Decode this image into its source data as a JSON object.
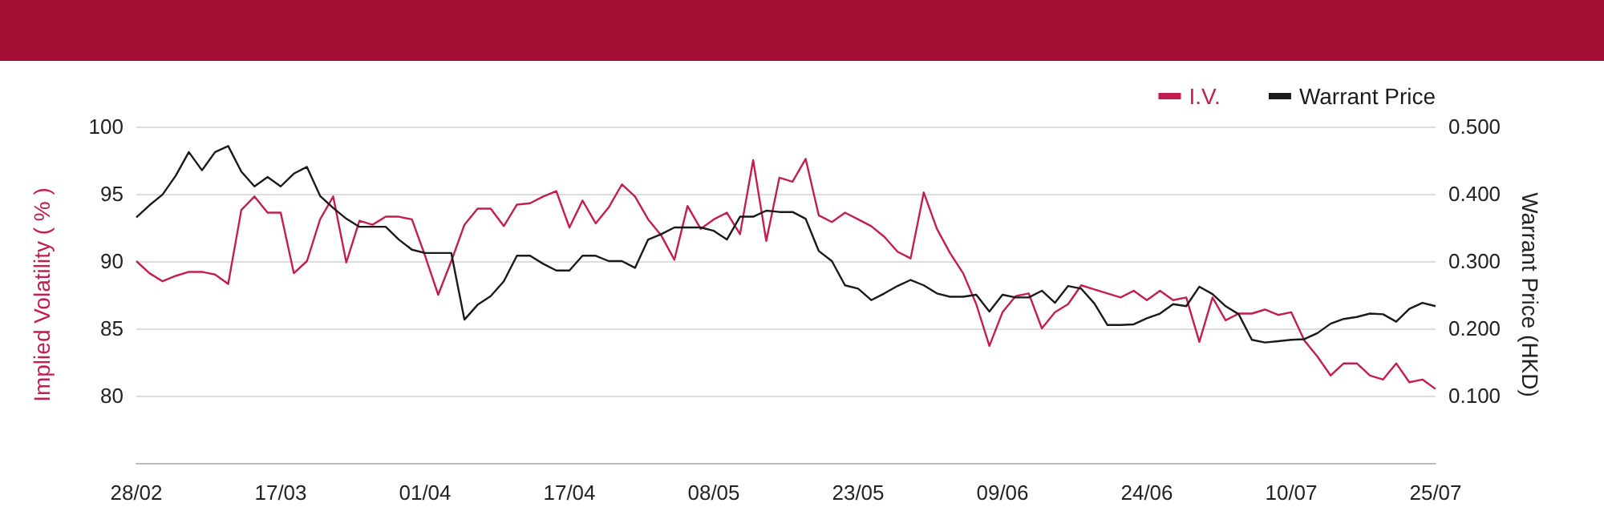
{
  "chart_data": {
    "type": "line",
    "ylabel": "Implied Volatility ( % )",
    "y2label": "Warrant Price (HKD)",
    "categories": [
      "28/02",
      null,
      null,
      null,
      null,
      null,
      null,
      null,
      null,
      null,
      null,
      "17/03",
      null,
      null,
      null,
      null,
      null,
      null,
      null,
      null,
      null,
      null,
      "01/04",
      null,
      null,
      null,
      null,
      null,
      null,
      null,
      null,
      null,
      null,
      "17/04",
      null,
      null,
      null,
      null,
      null,
      null,
      null,
      null,
      null,
      null,
      "08/05",
      null,
      null,
      null,
      null,
      null,
      null,
      null,
      null,
      null,
      null,
      "23/05",
      null,
      null,
      null,
      null,
      null,
      null,
      null,
      null,
      null,
      null,
      "09/06",
      null,
      null,
      null,
      null,
      null,
      null,
      null,
      null,
      null,
      null,
      "24/06",
      null,
      null,
      null,
      null,
      null,
      null,
      null,
      null,
      null,
      null,
      "10/07",
      null,
      null,
      null,
      null,
      null,
      null,
      null,
      null,
      null,
      null,
      "25/07"
    ],
    "series": [
      {
        "name": "I.V.",
        "color": "#c41e4e",
        "values": [
          90.0,
          89.1,
          88.5,
          88.9,
          89.2,
          89.2,
          89.0,
          88.3,
          93.8,
          94.8,
          93.6,
          93.6,
          89.1,
          90.0,
          93.1,
          94.8,
          89.9,
          93.0,
          92.7,
          93.3,
          93.3,
          93.1,
          90.4,
          87.5,
          90.0,
          92.7,
          93.9,
          93.9,
          92.6,
          94.2,
          94.3,
          94.8,
          95.2,
          92.5,
          94.5,
          92.8,
          94.0,
          95.7,
          94.8,
          93.1,
          91.9,
          90.1,
          94.1,
          92.4,
          93.1,
          93.6,
          92.0,
          97.5,
          91.5,
          96.2,
          95.9,
          97.6,
          93.4,
          92.9,
          93.6,
          93.1,
          92.6,
          91.8,
          90.7,
          90.2,
          95.1,
          92.4,
          90.6,
          89.1,
          86.8,
          83.7,
          86.2,
          87.4,
          87.6,
          85.0,
          86.2,
          86.8,
          88.2,
          87.9,
          87.6,
          87.3,
          87.8,
          87.1,
          87.8,
          87.1,
          87.3,
          84.0,
          87.3,
          85.6,
          86.1,
          86.1,
          86.4,
          86.0,
          86.2,
          84.1,
          82.9,
          81.5,
          82.4,
          82.4,
          81.5,
          81.2,
          82.4,
          81.0,
          81.2,
          80.5
        ]
      },
      {
        "name": "Warrant Price",
        "color": "#1a1a1a",
        "axis": "y2",
        "values": [
          0.365,
          0.383,
          0.399,
          0.427,
          0.462,
          0.435,
          0.462,
          0.471,
          0.433,
          0.411,
          0.425,
          0.411,
          0.43,
          0.44,
          0.397,
          0.379,
          0.363,
          0.351,
          0.351,
          0.351,
          0.332,
          0.317,
          0.312,
          0.312,
          0.312,
          0.213,
          0.235,
          0.248,
          0.27,
          0.308,
          0.308,
          0.296,
          0.286,
          0.286,
          0.308,
          0.308,
          0.3,
          0.3,
          0.29,
          0.332,
          0.34,
          0.35,
          0.35,
          0.35,
          0.345,
          0.332,
          0.366,
          0.366,
          0.375,
          0.373,
          0.373,
          0.363,
          0.315,
          0.3,
          0.264,
          0.259,
          0.242,
          0.252,
          0.263,
          0.272,
          0.264,
          0.252,
          0.247,
          0.247,
          0.25,
          0.225,
          0.25,
          0.246,
          0.246,
          0.256,
          0.238,
          0.263,
          0.259,
          0.237,
          0.205,
          0.205,
          0.206,
          0.215,
          0.222,
          0.236,
          0.233,
          0.262,
          0.251,
          0.233,
          0.221,
          0.183,
          0.179,
          0.181,
          0.183,
          0.184,
          0.193,
          0.207,
          0.214,
          0.217,
          0.222,
          0.221,
          0.21,
          0.229,
          0.238,
          0.233
        ]
      }
    ],
    "ylim": [
      75,
      100
    ],
    "yticks": [
      80,
      85,
      90,
      95,
      100
    ],
    "y2lim": [
      0,
      0.5
    ],
    "y2ticks": [
      {
        "value": 0.1,
        "label": "0.100"
      },
      {
        "value": 0.2,
        "label": "0.200"
      },
      {
        "value": 0.3,
        "label": "0.300"
      },
      {
        "value": 0.4,
        "label": "0.400"
      },
      {
        "value": 0.5,
        "label": "0.500"
      }
    ],
    "grid": "y",
    "legend": "top right",
    "marker": "none",
    "line_style": "solid"
  }
}
